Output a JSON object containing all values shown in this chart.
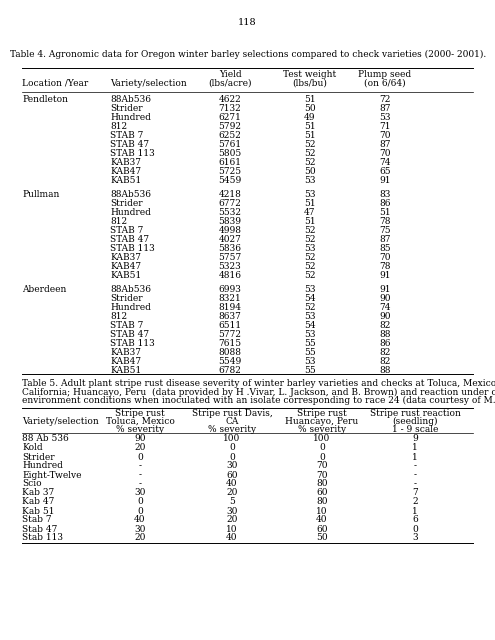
{
  "page_number": "118",
  "table4_title": "Table 4. Agronomic data for Oregon winter barley selections compared to check varieties (2000- 2001).",
  "table4_col_headers_line1": [
    "",
    "",
    "Yield",
    "Test weight",
    "Plump seed"
  ],
  "table4_col_headers_line2": [
    "Location /Year",
    "Variety/selection",
    "(lbs/acre)",
    "(lbs/bu)",
    "(on 6/64)"
  ],
  "table4_data": [
    [
      "Pendleton",
      "88Ab536",
      "4622",
      "51",
      "72"
    ],
    [
      "",
      "Strider",
      "7132",
      "50",
      "87"
    ],
    [
      "",
      "Hundred",
      "6271",
      "49",
      "53"
    ],
    [
      "",
      "812",
      "5792",
      "51",
      "71"
    ],
    [
      "",
      "STAB 7",
      "6252",
      "51",
      "70"
    ],
    [
      "",
      "STAB 47",
      "5761",
      "52",
      "87"
    ],
    [
      "",
      "STAB 113",
      "5805",
      "52",
      "70"
    ],
    [
      "",
      "KAB37",
      "6161",
      "52",
      "74"
    ],
    [
      "",
      "KAB47",
      "5725",
      "50",
      "65"
    ],
    [
      "",
      "KAB51",
      "5459",
      "53",
      "91"
    ],
    [
      "Pullman",
      "88Ab536",
      "4218",
      "53",
      "83"
    ],
    [
      "",
      "Strider",
      "6772",
      "51",
      "86"
    ],
    [
      "",
      "Hundred",
      "5532",
      "47",
      "51"
    ],
    [
      "",
      "812",
      "5839",
      "51",
      "78"
    ],
    [
      "",
      "STAB 7",
      "4998",
      "52",
      "75"
    ],
    [
      "",
      "STAB 47",
      "4027",
      "52",
      "87"
    ],
    [
      "",
      "STAB 113",
      "5836",
      "53",
      "85"
    ],
    [
      "",
      "KAB37",
      "5757",
      "52",
      "70"
    ],
    [
      "",
      "KAB47",
      "5323",
      "52",
      "78"
    ],
    [
      "",
      "KAB51",
      "4816",
      "52",
      "91"
    ],
    [
      "Aberdeen",
      "88Ab536",
      "6993",
      "53",
      "91"
    ],
    [
      "",
      "Strider",
      "8321",
      "54",
      "90"
    ],
    [
      "",
      "Hundred",
      "8194",
      "52",
      "74"
    ],
    [
      "",
      "812",
      "8637",
      "53",
      "90"
    ],
    [
      "",
      "STAB 7",
      "6511",
      "54",
      "82"
    ],
    [
      "",
      "STAB 47",
      "5772",
      "53",
      "88"
    ],
    [
      "",
      "STAB 113",
      "7615",
      "55",
      "86"
    ],
    [
      "",
      "KAB37",
      "8088",
      "55",
      "82"
    ],
    [
      "",
      "KAB47",
      "5549",
      "53",
      "82"
    ],
    [
      "",
      "KAB51",
      "6782",
      "55",
      "88"
    ]
  ],
  "table5_title_lines": [
    "Table 5. Adult plant stripe rust disease severity of winter barley varieties and checks at Toluca, Mexico; Davis,",
    "California; Huancayo, Peru  (data provided by H .Vivar, L. Jackson, and B. Brown) and reaction under controlled",
    "environment conditions when inoculated with an isolate corresponding to race 24 (data courtesy of M. Johnston)."
  ],
  "table5_col_headers_line1": [
    "",
    "Stripe rust",
    "Stripe rust Davis,",
    "Stripe rust",
    "Stripe rust reaction"
  ],
  "table5_col_headers_line2": [
    "Variety/selection",
    "Toluca, Mexico",
    "CA",
    "Huancayo, Peru",
    "(seedling)"
  ],
  "table5_col_headers_line3": [
    "",
    "% severity",
    "% severity",
    "% severity",
    "1 - 9 scale"
  ],
  "table5_data": [
    [
      "88 Ab 536",
      "90",
      "100",
      "100",
      "9"
    ],
    [
      "Kold",
      "20",
      "0",
      "0",
      "1"
    ],
    [
      "Strider",
      "0",
      "0",
      "0",
      "1"
    ],
    [
      "Hundred",
      "-",
      "30",
      "70",
      "-"
    ],
    [
      "Eight-Twelve",
      "-",
      "60",
      "70",
      "-"
    ],
    [
      "Scio",
      "-",
      "40",
      "80",
      "-"
    ],
    [
      "Kab 37",
      "30",
      "20",
      "60",
      "7"
    ],
    [
      "Kab 47",
      "0",
      "5",
      "80",
      "2"
    ],
    [
      "Kab 51",
      "0",
      "30",
      "10",
      "1"
    ],
    [
      "Stab 7",
      "40",
      "20",
      "40",
      "6"
    ],
    [
      "Stab 47",
      "30",
      "10",
      "60",
      "0"
    ],
    [
      "Stab 113",
      "20",
      "40",
      "50",
      "3"
    ]
  ],
  "bg_color": "#ffffff",
  "text_color": "#000000"
}
